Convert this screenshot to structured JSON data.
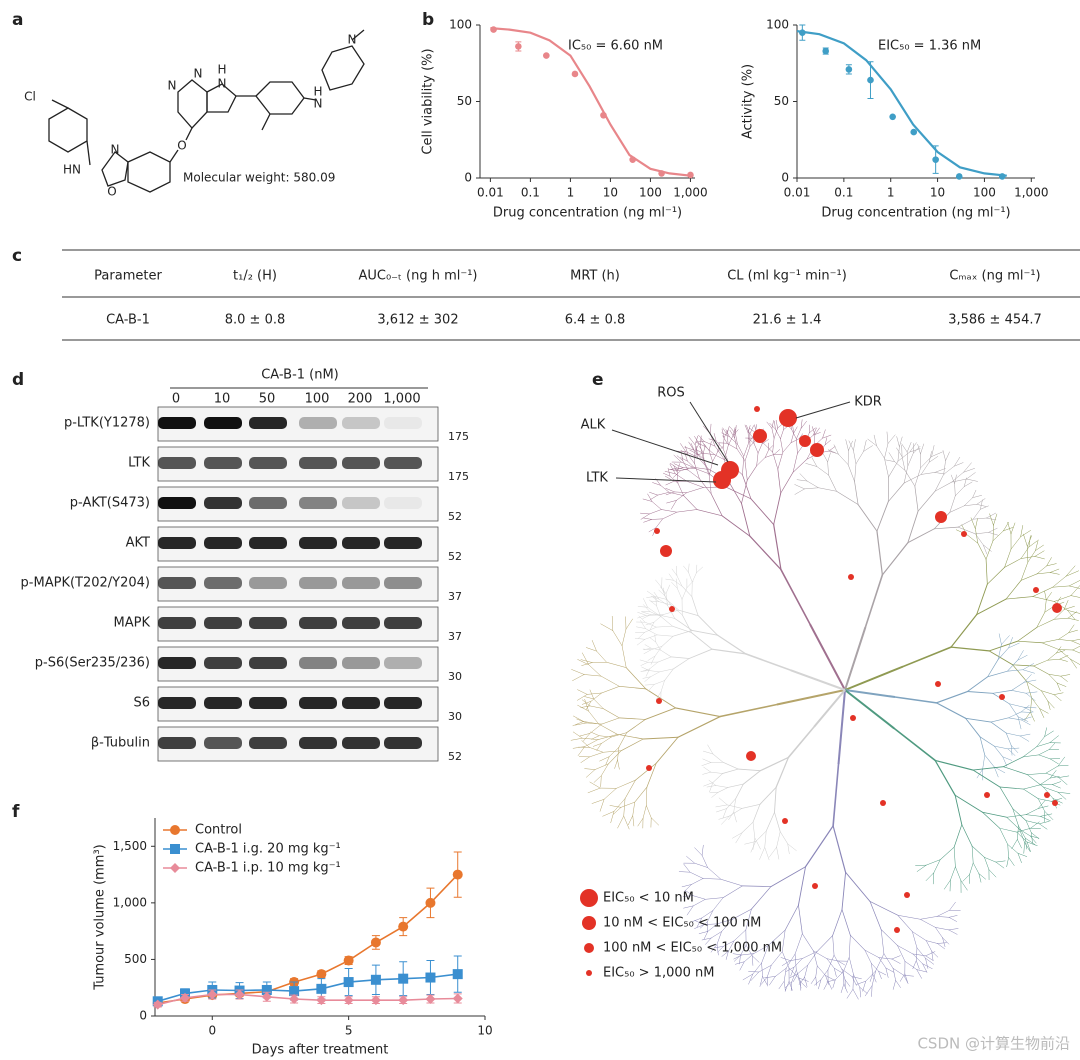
{
  "panel_labels": [
    "a",
    "b",
    "c",
    "d",
    "e",
    "f"
  ],
  "structure": {
    "atoms": [
      "Cl",
      "HN",
      "N",
      "O",
      "O",
      "N",
      "N",
      "H",
      "N",
      "H",
      "N",
      "N"
    ],
    "molecular_weight": "Molecular weight: 580.09"
  },
  "chart_data": [
    {
      "type": "dose_response",
      "annotation": "IC₅₀ = 6.60 nM",
      "x_label": "Drug concentration (ng ml⁻¹)",
      "y_label": "Cell viability (%)",
      "xlog": true,
      "xlim": [
        0.0055,
        1300
      ],
      "xticks": [
        0.01,
        0.1,
        1,
        10,
        100,
        {
          "value": 1000,
          "label": "1,000"
        }
      ],
      "ylim": [
        0,
        100
      ],
      "yticks": [
        0,
        50,
        100
      ],
      "color": "#e8868a",
      "points": {
        "x": [
          0.012,
          0.05,
          0.25,
          1.3,
          6.7,
          36,
          190,
          1000
        ],
        "values": [
          97,
          86,
          80,
          68,
          41,
          12,
          3,
          2
        ],
        "errors": [
          0,
          3,
          0,
          0,
          0,
          0,
          0,
          0
        ]
      },
      "curve": {
        "x": [
          0.01,
          0.03,
          0.1,
          0.3,
          1,
          3,
          10,
          30,
          100,
          300,
          1000
        ],
        "values": [
          98,
          97,
          95,
          90,
          80,
          60,
          35,
          15,
          6,
          3,
          1.5
        ]
      }
    },
    {
      "type": "dose_response",
      "annotation": "EIC₅₀ = 1.36 nM",
      "x_label": "Drug concentration (ng ml⁻¹)",
      "y_label": "Activity (%)",
      "xlog": true,
      "xlim": [
        0.01,
        1200
      ],
      "xticks": [
        0.01,
        0.1,
        1,
        10,
        100,
        {
          "value": 1000,
          "label": "1,000"
        }
      ],
      "ylim": [
        0,
        100
      ],
      "yticks": [
        0,
        50,
        100
      ],
      "color": "#3f9ec6",
      "points": {
        "x": [
          0.013,
          0.041,
          0.128,
          0.37,
          1.1,
          3.1,
          9.1,
          29,
          240
        ],
        "values": [
          95,
          83,
          71,
          64,
          40,
          30,
          12,
          1,
          1
        ],
        "errors": [
          5,
          2,
          3,
          12,
          0,
          0,
          9,
          0,
          0
        ]
      },
      "curve": {
        "x": [
          0.01,
          0.03,
          0.1,
          0.3,
          1,
          3,
          10,
          30,
          100,
          300
        ],
        "values": [
          96,
          94,
          88,
          77,
          58,
          35,
          17,
          7,
          3,
          1.5
        ]
      }
    },
    {
      "type": "line",
      "x_label": "Days after treatment",
      "y_label": "Tumour volume (mm³)",
      "xlim": [
        -2.1,
        10
      ],
      "xticks": [
        0,
        5,
        10
      ],
      "ylim": [
        0,
        1750
      ],
      "yticks": [
        0,
        500,
        {
          "value": 1000,
          "label": "1,000"
        },
        {
          "value": 1500,
          "label": "1,500"
        }
      ],
      "x": [
        -2,
        -1,
        0,
        1,
        2,
        3,
        4,
        5,
        6,
        7,
        8,
        9
      ],
      "series": [
        {
          "name": "Control",
          "color": "#e8772e",
          "marker": "circle",
          "values": [
            115,
            150,
            185,
            200,
            215,
            300,
            370,
            490,
            650,
            790,
            1000,
            1250
          ],
          "errors": [
            20,
            20,
            25,
            25,
            25,
            30,
            30,
            35,
            60,
            80,
            130,
            200
          ]
        },
        {
          "name": "CA-B-1 i.g. 20 mg kg⁻¹",
          "color": "#3a8fd0",
          "marker": "square",
          "values": [
            130,
            200,
            230,
            225,
            230,
            220,
            240,
            300,
            320,
            330,
            340,
            370
          ],
          "errors": [
            30,
            40,
            70,
            70,
            70,
            80,
            90,
            120,
            130,
            150,
            150,
            160
          ]
        },
        {
          "name": "CA-B-1 i.p. 10 mg kg⁻¹",
          "color": "#e88b9a",
          "marker": "diamond",
          "values": [
            100,
            160,
            190,
            190,
            170,
            150,
            140,
            140,
            140,
            140,
            150,
            155
          ],
          "errors": [
            20,
            30,
            40,
            40,
            40,
            35,
            30,
            30,
            30,
            30,
            35,
            40
          ]
        }
      ]
    }
  ],
  "table": {
    "header": [
      "Parameter",
      "t₁/₂ (H)",
      "AUC₀₋ₜ (ng h ml⁻¹)",
      "MRT (h)",
      "CL (ml kg⁻¹ min⁻¹)",
      "Cₘₐₓ (ng ml⁻¹)"
    ],
    "rows": [
      [
        "CA-B-1",
        "8.0 ± 0.8",
        "3,612 ± 302",
        "6.4 ± 0.8",
        "21.6 ± 1.4",
        "3,586 ± 454.7"
      ]
    ]
  },
  "blot": {
    "title": "CA-B-1 (nM)",
    "lanes": [
      "0",
      "10",
      "50",
      "100",
      "200",
      "1,000"
    ],
    "rows": [
      {
        "label": "p-LTK(Y1278)",
        "marker": "175",
        "bands": [
          1,
          1,
          0.9,
          0.3,
          0.2,
          0.05
        ]
      },
      {
        "label": "LTK",
        "marker": "175",
        "bands": [
          0.7,
          0.7,
          0.7,
          0.7,
          0.7,
          0.7
        ]
      },
      {
        "label": "p-AKT(S473)",
        "marker": "52",
        "bands": [
          1,
          0.85,
          0.6,
          0.5,
          0.2,
          0.05
        ]
      },
      {
        "label": "AKT",
        "marker": "52",
        "bands": [
          0.9,
          0.9,
          0.9,
          0.9,
          0.9,
          0.9
        ]
      },
      {
        "label": "p-MAPK(T202/Y204)",
        "marker": "37",
        "bands": [
          0.7,
          0.6,
          0.4,
          0.4,
          0.4,
          0.45
        ]
      },
      {
        "label": "MAPK",
        "marker": "37",
        "bands": [
          0.8,
          0.8,
          0.8,
          0.8,
          0.8,
          0.8
        ]
      },
      {
        "label": "p-S6(Ser235/236)",
        "marker": "30",
        "bands": [
          0.9,
          0.8,
          0.8,
          0.5,
          0.4,
          0.3
        ]
      },
      {
        "label": "S6",
        "marker": "30",
        "bands": [
          0.9,
          0.9,
          0.9,
          0.9,
          0.9,
          0.9
        ]
      },
      {
        "label": "β-Tubulin",
        "marker": "52",
        "bands": [
          0.8,
          0.7,
          0.8,
          0.85,
          0.85,
          0.85
        ]
      }
    ]
  },
  "kinome": {
    "labels": [
      "ROS",
      "KDR",
      "ALK",
      "LTK"
    ],
    "legend": [
      "EIC₅₀ < 10 nM",
      "10 nM < EIC₅₀ < 100 nM",
      "100 nM < EIC₅₀ < 1,000 nM",
      "EIC₅₀ > 1,000 nM"
    ]
  },
  "watermark": "CSDN @计算生物前沿"
}
